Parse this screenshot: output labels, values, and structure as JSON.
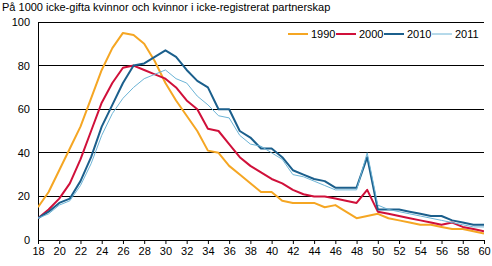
{
  "chart_data": {
    "type": "line",
    "title": "På 1000 icke-gifta kvinnor och kvinnor i icke-registrerat partnerskap",
    "x": [
      18,
      19,
      20,
      21,
      22,
      23,
      24,
      25,
      26,
      27,
      28,
      29,
      30,
      31,
      32,
      33,
      34,
      35,
      36,
      37,
      38,
      39,
      40,
      41,
      42,
      43,
      44,
      45,
      46,
      47,
      48,
      49,
      50,
      51,
      52,
      53,
      54,
      55,
      56,
      57,
      58,
      59,
      60
    ],
    "xlim": [
      18,
      60
    ],
    "ylim": [
      0,
      100
    ],
    "xticks": [
      18,
      20,
      22,
      24,
      26,
      28,
      30,
      32,
      34,
      36,
      38,
      40,
      42,
      44,
      46,
      48,
      50,
      52,
      54,
      56,
      58,
      60
    ],
    "yticks": [
      0,
      20,
      40,
      60,
      80,
      100
    ],
    "grid": true,
    "legend": "top-right",
    "series": [
      {
        "name": "1990",
        "color": "#f5a623",
        "values": [
          15,
          22,
          32,
          42,
          52,
          65,
          78,
          88,
          95,
          94,
          90,
          82,
          72,
          64,
          57,
          50,
          41,
          40,
          34,
          30,
          26,
          22,
          22,
          18,
          17,
          17,
          17,
          15,
          16,
          13,
          10,
          11,
          12,
          10,
          9,
          8,
          7,
          7,
          6,
          5,
          5,
          4,
          3
        ]
      },
      {
        "name": "2000",
        "color": "#d0103a",
        "values": [
          10,
          14,
          19,
          26,
          37,
          50,
          63,
          72,
          79,
          80,
          78,
          76,
          74,
          70,
          64,
          60,
          51,
          50,
          44,
          38,
          34,
          31,
          28,
          26,
          23,
          21,
          20,
          20,
          19,
          18,
          17,
          23,
          13,
          12,
          11,
          10,
          9,
          8,
          7,
          8,
          6,
          5,
          4
        ]
      },
      {
        "name": "2010",
        "color": "#1b5f8c",
        "values": [
          10,
          13,
          17,
          19,
          27,
          38,
          52,
          62,
          72,
          80,
          81,
          84,
          87,
          84,
          78,
          73,
          70,
          60,
          60,
          50,
          47,
          42,
          42,
          38,
          32,
          30,
          28,
          27,
          24,
          24,
          24,
          38,
          14,
          14,
          14,
          13,
          12,
          11,
          11,
          9,
          8,
          7,
          7
        ]
      },
      {
        "name": "2011",
        "color": "#6cb4d6",
        "values": [
          10,
          12,
          16,
          18,
          25,
          35,
          48,
          58,
          65,
          70,
          74,
          76,
          78,
          74,
          72,
          66,
          62,
          57,
          56,
          48,
          44,
          43,
          40,
          37,
          30,
          29,
          27,
          25,
          23,
          23,
          23,
          40,
          16,
          14,
          13,
          12,
          11,
          10,
          9,
          8,
          7,
          6,
          6
        ]
      }
    ]
  }
}
